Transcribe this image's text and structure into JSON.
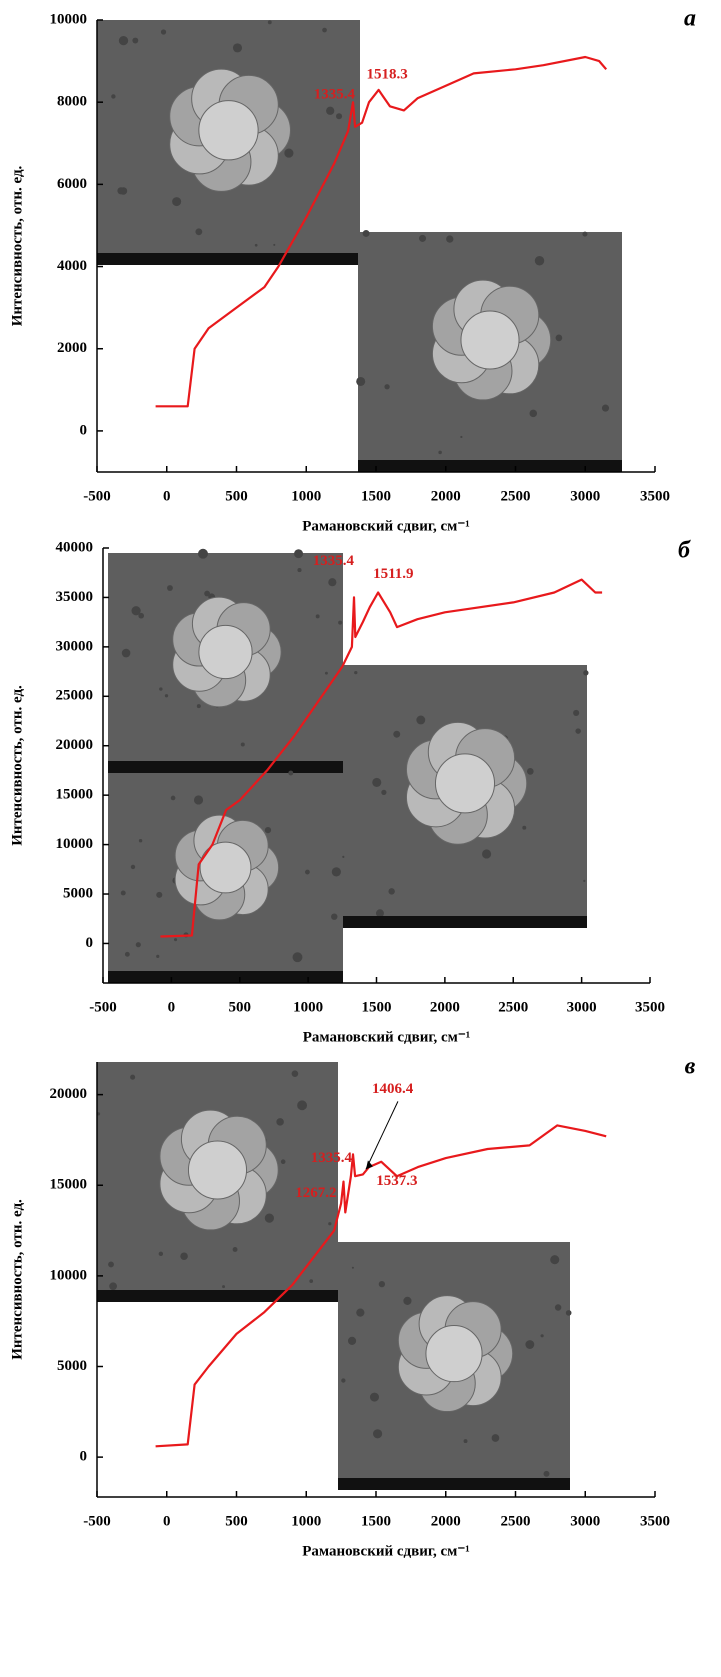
{
  "chart_data": [
    {
      "type": "line",
      "panel": "а",
      "xlabel": "Рамановский сдвиг, см⁻¹",
      "ylabel": "Интенсивность, отн. ед.",
      "xlim": [
        -500,
        3500
      ],
      "xticks": [
        -500,
        0,
        500,
        1000,
        1500,
        2000,
        2500,
        3000,
        3500
      ],
      "ylim": [
        -1000,
        10000
      ],
      "yticks": [
        0,
        2000,
        4000,
        6000,
        8000,
        10000
      ],
      "color": "#e8191c",
      "x": [
        -80,
        150,
        200,
        300,
        500,
        700,
        800,
        1000,
        1200,
        1300,
        1335.4,
        1350,
        1400,
        1450,
        1518.3,
        1600,
        1700,
        1800,
        2000,
        2200,
        2500,
        2700,
        3000,
        3100,
        3150
      ],
      "values": [
        600,
        600,
        2000,
        2500,
        3000,
        3500,
        4000,
        5200,
        6500,
        7300,
        8000,
        7400,
        7500,
        8000,
        8300,
        7900,
        7800,
        8100,
        8400,
        8700,
        8800,
        8900,
        9100,
        9000,
        8800
      ],
      "annotations": [
        {
          "x": 1335.4,
          "label": "1335.4"
        },
        {
          "x": 1518.3,
          "label": "1518.3"
        }
      ]
    },
    {
      "type": "line",
      "panel": "б",
      "xlabel": "Рамановский сдвиг, см⁻¹",
      "ylabel": "Интенсивность, отн. ед.",
      "xlim": [
        -500,
        3500
      ],
      "xticks": [
        -500,
        0,
        500,
        1000,
        1500,
        2000,
        2500,
        3000,
        3500
      ],
      "ylim": [
        -4000,
        40000
      ],
      "yticks": [
        0,
        5000,
        10000,
        15000,
        20000,
        25000,
        30000,
        35000,
        40000
      ],
      "color": "#e8191c",
      "x": [
        -80,
        150,
        200,
        300,
        400,
        500,
        700,
        900,
        1100,
        1250,
        1320,
        1335.4,
        1345,
        1400,
        1450,
        1511.9,
        1600,
        1650,
        1800,
        2000,
        2500,
        2800,
        3000,
        3100,
        3150
      ],
      "values": [
        700,
        800,
        8000,
        10000,
        13500,
        14500,
        17500,
        21000,
        25000,
        28000,
        30000,
        35000,
        31000,
        32500,
        34000,
        35500,
        33500,
        32000,
        32800,
        33500,
        34500,
        35500,
        36800,
        35500,
        35500
      ],
      "annotations": [
        {
          "x": 1335.4,
          "label": "1335.4"
        },
        {
          "x": 1511.9,
          "label": "1511.9"
        }
      ]
    },
    {
      "type": "line",
      "panel": "в",
      "xlabel": "Рамановский сдвиг, см⁻¹",
      "ylabel": "Интенсивность, отн. ед.",
      "xlim": [
        -500,
        3500
      ],
      "xticks": [
        -500,
        0,
        500,
        1000,
        1500,
        2000,
        2500,
        3000,
        3500
      ],
      "ylim": [
        -2200,
        21800
      ],
      "yticks": [
        0,
        5000,
        10000,
        15000,
        20000
      ],
      "color": "#e8191c",
      "x": [
        -80,
        150,
        200,
        300,
        500,
        700,
        900,
        1100,
        1200,
        1250,
        1267.2,
        1280,
        1320,
        1335.4,
        1350,
        1406.4,
        1450,
        1537.3,
        1650,
        1800,
        2000,
        2300,
        2600,
        2800,
        3000,
        3150
      ],
      "values": [
        600,
        700,
        4000,
        5000,
        6800,
        8000,
        9500,
        11500,
        12500,
        14000,
        15200,
        13500,
        15500,
        16700,
        15500,
        15600,
        16000,
        16300,
        15500,
        16000,
        16500,
        17000,
        17200,
        18300,
        18000,
        17700
      ],
      "annotations": [
        {
          "x": 1267.2,
          "label": "1267.2"
        },
        {
          "x": 1335.4,
          "label": "1335.4"
        },
        {
          "x": 1406.4,
          "label": "1406.4"
        },
        {
          "x": 1537.3,
          "label": "1537.3"
        }
      ]
    }
  ]
}
